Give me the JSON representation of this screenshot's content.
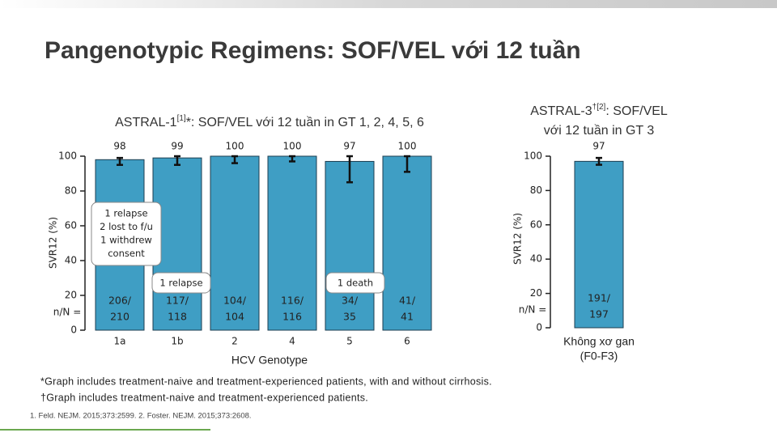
{
  "title": "Pangenotypic Regimens: SOF/VEL với 12 tuần",
  "chart_data": [
    {
      "type": "bar",
      "title": [
        "ASTRAL-1",
        "[1]",
        "*: SOF/VEL với 12 tuần in GT 1, 2, 4, 5, 6"
      ],
      "categories": [
        "1a",
        "1b",
        "2",
        "4",
        "5",
        "6"
      ],
      "values": [
        98,
        99,
        100,
        100,
        97,
        100
      ],
      "ci_low": [
        95,
        95,
        96,
        97,
        85,
        91
      ],
      "ci_high": [
        99,
        100,
        100,
        100,
        100,
        100
      ],
      "n_label": "n/N =",
      "n_labels": [
        [
          "206/",
          "210"
        ],
        [
          "117/",
          "118"
        ],
        [
          "104/",
          "104"
        ],
        [
          "116/",
          "116"
        ],
        [
          "34/",
          "35"
        ],
        [
          "41/",
          "41"
        ]
      ],
      "color": "#3f9ec4",
      "ylabel": "SVR12 (%)",
      "xlabel": "HCV Genotype",
      "ylim": [
        0,
        100
      ],
      "yticks": [
        0,
        20,
        40,
        60,
        80,
        100
      ],
      "annotations": [
        [
          "1 relapse",
          "2 lost to f/u",
          "1 withdrew",
          "consent"
        ],
        [
          "1 relapse"
        ],
        [
          "1 death"
        ]
      ]
    },
    {
      "type": "bar",
      "title": [
        "ASTRAL-3",
        "†[2]",
        ": SOF/VEL",
        "với 12 tuần in GT 3"
      ],
      "categories": [
        [
          "Không xơ gan",
          "(F0-F3)"
        ]
      ],
      "values": [
        97
      ],
      "ci_low": [
        95
      ],
      "ci_high": [
        99
      ],
      "n_label": "n/N =",
      "n_labels": [
        [
          "191/",
          "197"
        ]
      ],
      "color": "#3f9ec4",
      "ylabel": "SVR12 (%)",
      "ylim": [
        0,
        100
      ],
      "yticks": [
        0,
        20,
        40,
        60,
        80,
        100
      ]
    }
  ],
  "footnotes": [
    "*Graph includes treatment-naive and treatment-experienced patients, with and without cirrhosis.",
    "†Graph includes treatment-naive and treatment-experienced patients."
  ],
  "reference": "1. Feld. NEJM. 2015;373:2599. 2. Foster. NEJM. 2015;373:2608."
}
